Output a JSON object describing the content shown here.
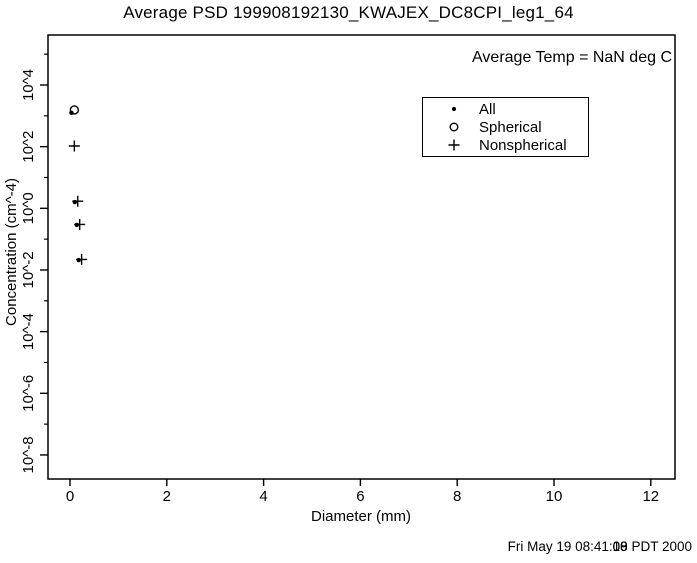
{
  "header": {
    "title": "Average PSD 199908192130_KWAJEX_DC8CPI_leg1_64"
  },
  "annotation": {
    "text": "Average Temp = NaN deg C"
  },
  "legend": {
    "entries": [
      {
        "marker": "dot",
        "label": "All"
      },
      {
        "marker": "circle",
        "label": "Spherical"
      },
      {
        "marker": "plus",
        "label": "Nonspherical"
      }
    ]
  },
  "timestamp": {
    "prefix": "Fri May 19 08:41:",
    "seconds_variants": [
      "08",
      "09",
      "10"
    ],
    "suffix": " PDT 2000"
  },
  "chart_data": {
    "type": "scatter",
    "title": "Average PSD 199908192130_KWAJEX_DC8CPI_leg1_64",
    "xlabel": "Diameter (mm)",
    "ylabel": "Concentration (cm^-4)",
    "x_ticks": [
      0,
      2,
      4,
      6,
      8,
      10,
      12
    ],
    "y_major_ticks": [
      {
        "exp": 4,
        "label": "10^4"
      },
      {
        "exp": 2,
        "label": "10^2"
      },
      {
        "exp": 0,
        "label": "10^0"
      },
      {
        "exp": -2,
        "label": "10^-2"
      },
      {
        "exp": -4,
        "label": "10^-4"
      },
      {
        "exp": -6,
        "label": "10^-6"
      },
      {
        "exp": -8,
        "label": "10^-8"
      }
    ],
    "y_minor_tick_exps": [
      5,
      3,
      1,
      -1,
      -3,
      -5,
      -7
    ],
    "xlim": [
      -0.4545,
      12.5
    ],
    "ylim_log": [
      -8.78,
      5.622
    ],
    "grid": false,
    "legend_position": "upper-right-inside",
    "series": [
      {
        "name": "All",
        "marker": "dot",
        "points": [
          [
            0.03,
            1250
          ],
          [
            0.1,
            1.6
          ],
          [
            0.14,
            0.29
          ],
          [
            0.18,
            0.021
          ]
        ]
      },
      {
        "name": "Spherical",
        "marker": "circle",
        "points": [
          [
            0.09,
            1550
          ]
        ]
      },
      {
        "name": "Nonspherical",
        "marker": "plus",
        "points": [
          [
            0.09,
            105
          ],
          [
            0.16,
            1.7
          ],
          [
            0.2,
            0.3
          ],
          [
            0.24,
            0.022
          ]
        ]
      }
    ],
    "colors": {
      "foreground": "#000000",
      "background": "#ffffff"
    }
  }
}
